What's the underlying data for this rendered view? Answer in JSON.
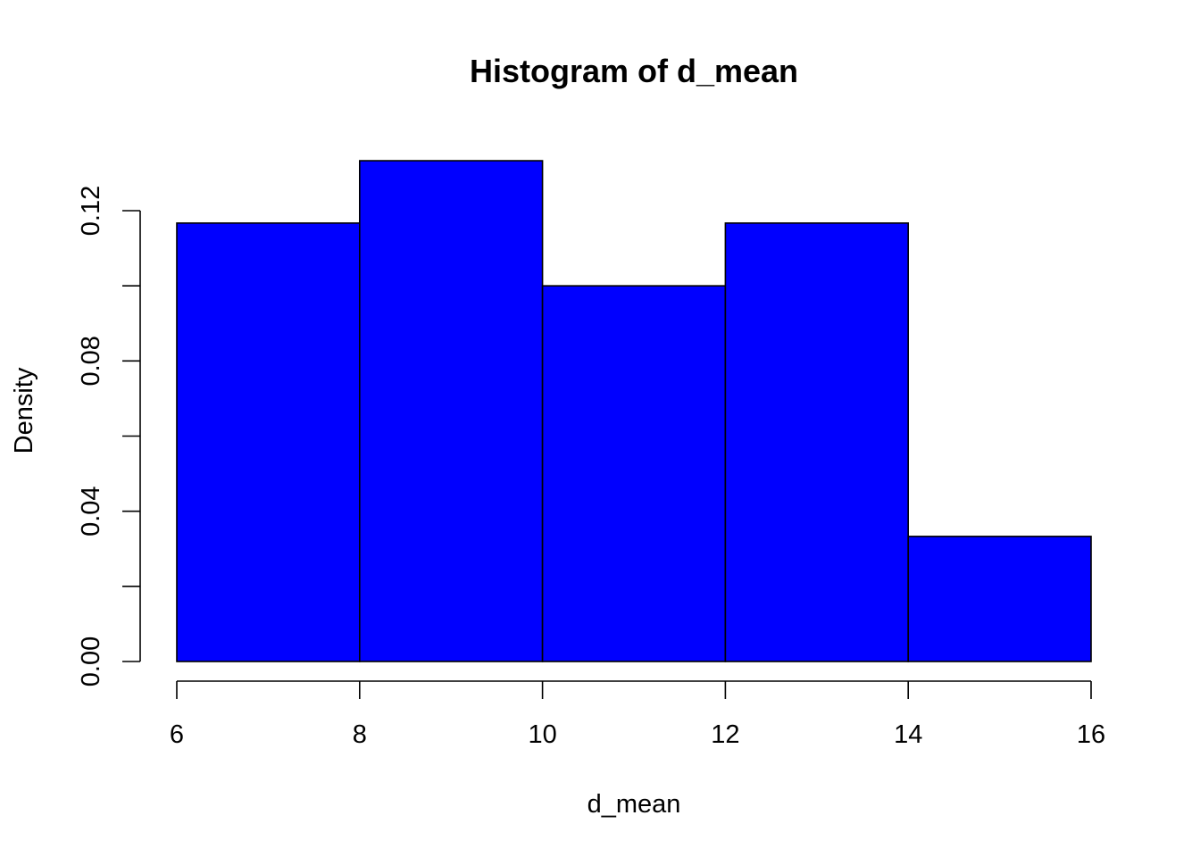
{
  "chart_data": {
    "type": "bar",
    "title": "Histogram of d_mean",
    "xlabel": "d_mean",
    "ylabel": "Density",
    "bins": [
      {
        "from": 6,
        "to": 8,
        "density": 0.1167
      },
      {
        "from": 8,
        "to": 10,
        "density": 0.1333
      },
      {
        "from": 10,
        "to": 12,
        "density": 0.1
      },
      {
        "from": 12,
        "to": 14,
        "density": 0.1167
      },
      {
        "from": 14,
        "to": 16,
        "density": 0.0333
      }
    ],
    "xlim": [
      6,
      16
    ],
    "ylim": [
      0,
      0.12
    ],
    "xticks": [
      "6",
      "8",
      "10",
      "12",
      "14",
      "16"
    ],
    "yticks": [
      "0.00",
      "0.04",
      "0.08",
      "0.12"
    ],
    "y_minor_ticks": [
      0.02,
      0.06,
      0.1
    ],
    "bar_color": "#0000ff",
    "edge_color": "#000000",
    "grid": false
  }
}
